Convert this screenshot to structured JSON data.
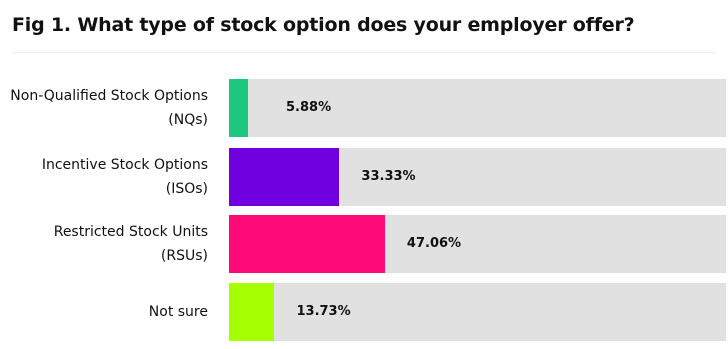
{
  "chart_data": {
    "type": "bar",
    "orientation": "horizontal",
    "title": "Fig 1. What type of stock option does your employer offer?",
    "categories": [
      "Non-Qualified Stock Options\n(NQs)",
      "Incentive Stock Options\n(ISOs)",
      "Restricted Stock Units\n(RSUs)",
      "Not sure"
    ],
    "values": [
      5.88,
      33.33,
      47.06,
      13.73
    ],
    "value_labels": [
      "5.88%",
      "33.33%",
      "47.06%",
      "13.73%"
    ],
    "colors": [
      "#1ec97f",
      "#7000e0",
      "#ff0a78",
      "#a6ff00"
    ],
    "track_color": "#e1e1e1",
    "xlim": [
      0,
      150
    ]
  }
}
